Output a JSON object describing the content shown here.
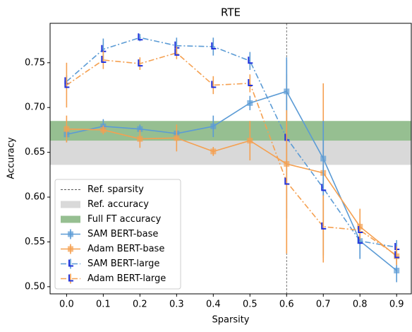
{
  "chart_data": {
    "type": "line",
    "title": "RTE",
    "x_label": "Sparsity",
    "y_label": "Accuracy",
    "x": [
      0.0,
      0.1,
      0.2,
      0.3,
      0.4,
      0.5,
      0.6,
      0.7,
      0.8,
      0.9
    ],
    "xlim": [
      -0.045,
      0.94
    ],
    "ylim": [
      0.492,
      0.794
    ],
    "xticks": [
      {
        "value": 0,
        "label": "0.0"
      },
      0.1,
      0.2,
      0.3,
      0.4,
      0.5,
      0.6,
      0.7,
      0.8,
      0.9
    ],
    "yticks": [
      {
        "value": 0.5,
        "label": "0.50"
      },
      0.55,
      {
        "value": 0.6,
        "label": "0.60"
      },
      0.65,
      {
        "value": 0.7,
        "label": "0.70"
      },
      0.75
    ],
    "legend": "lower left",
    "ref_line": {
      "name": "Ref. sparsity",
      "x": 0.6,
      "color": "#555555"
    },
    "bands": [
      {
        "name": "Ref. accuracy",
        "range": [
          0.636,
          0.663
        ],
        "color": "#d9d9d9"
      },
      {
        "name": "Full FT accuracy",
        "range": [
          0.663,
          0.685
        ],
        "color": "#96bf91"
      }
    ],
    "series": [
      {
        "name": "SAM BERT-base",
        "color": "#5b9bd5",
        "dash": "solid",
        "values": [
          0.67,
          0.679,
          0.676,
          0.671,
          0.679,
          0.705,
          0.718,
          0.643,
          0.551,
          0.518
        ],
        "errors": [
          0.008,
          0.008,
          0.005,
          0.005,
          0.012,
          0.008,
          0.035,
          0.042,
          0.02,
          0.013
        ]
      },
      {
        "name": "Adam BERT-base",
        "color": "#f5a050",
        "dash": "solid",
        "values": [
          0.676,
          0.675,
          0.665,
          0.666,
          0.651,
          0.663,
          0.637,
          0.627,
          0.567,
          0.534
        ],
        "errors": [
          0.015,
          0.005,
          0.01,
          0.015,
          0.005,
          0.022,
          0.1,
          0.1,
          0.02,
          0.01
        ]
      },
      {
        "name": "SAM BERT-large",
        "color": "#5b9bd5",
        "dash": "dashdot",
        "values": [
          0.729,
          0.765,
          0.778,
          0.769,
          0.768,
          0.752,
          0.666,
          0.61,
          0.551,
          0.544
        ],
        "errors": [
          0.007,
          0.012,
          0.004,
          0.009,
          0.01,
          0.01,
          0.09,
          0.075,
          0.02,
          0.008
        ]
      },
      {
        "name": "Adam BERT-large",
        "color": "#f5a050",
        "dash": "dashdot",
        "values": [
          0.725,
          0.753,
          0.749,
          0.761,
          0.725,
          0.727,
          0.617,
          0.567,
          0.563,
          0.535
        ],
        "errors": [
          0.025,
          0.01,
          0.007,
          0.007,
          0.01,
          0.01,
          0.08,
          0.035,
          0.01,
          0.01
        ]
      }
    ]
  }
}
